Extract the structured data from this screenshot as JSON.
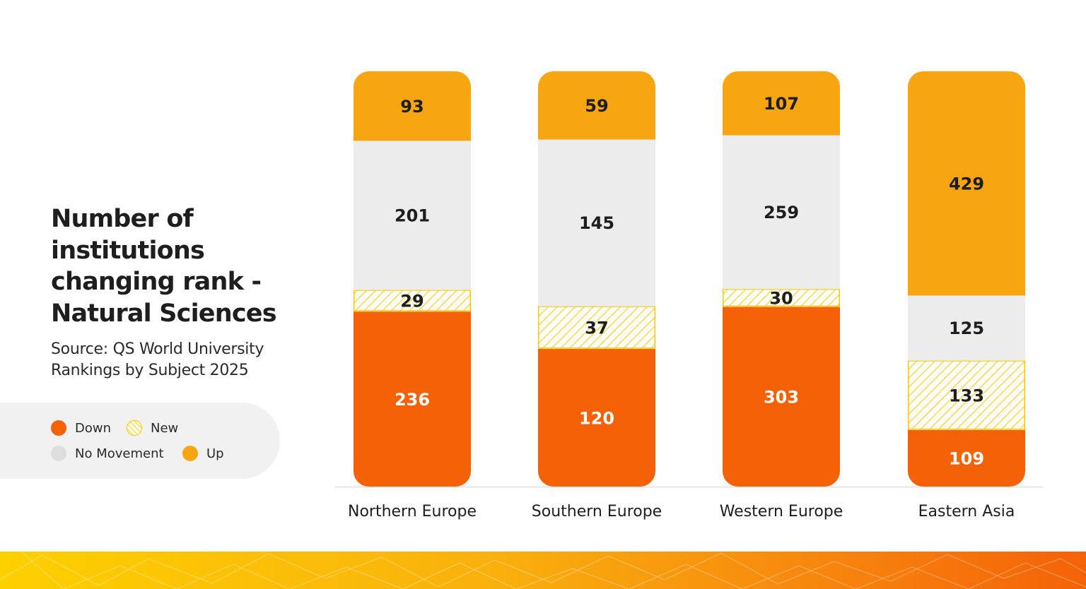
{
  "title": "Number of institutions changing rank - Natural Sciences",
  "subtitle": "Source: QS World University Rankings by Subject 2025",
  "legend": [
    {
      "label": "Down",
      "color": "#f46106",
      "pattern": "solid"
    },
    {
      "label": "New",
      "color": "#fce56b",
      "pattern": "hatch"
    },
    {
      "label": "No Movement",
      "color": "#dedede",
      "pattern": "solid"
    },
    {
      "label": "Up",
      "color": "#f7a511",
      "pattern": "solid"
    }
  ],
  "chart_data": {
    "type": "bar",
    "stacked": true,
    "categories": [
      "Northern Europe",
      "Southern Europe",
      "Western Europe",
      "Eastern Asia"
    ],
    "series": [
      {
        "name": "Down",
        "values": [
          236,
          120,
          303,
          109
        ],
        "color": "#f46106"
      },
      {
        "name": "New",
        "values": [
          29,
          37,
          30,
          133
        ],
        "color": "#fce56b"
      },
      {
        "name": "No Movement",
        "values": [
          201,
          145,
          259,
          125
        ],
        "color": "#ececec"
      },
      {
        "name": "Up",
        "values": [
          93,
          59,
          107,
          429
        ],
        "color": "#f7a511"
      }
    ],
    "stack_order": [
      "Down",
      "New",
      "No Movement",
      "Up"
    ],
    "normalized": true,
    "grid": false,
    "legend_position": "left"
  }
}
